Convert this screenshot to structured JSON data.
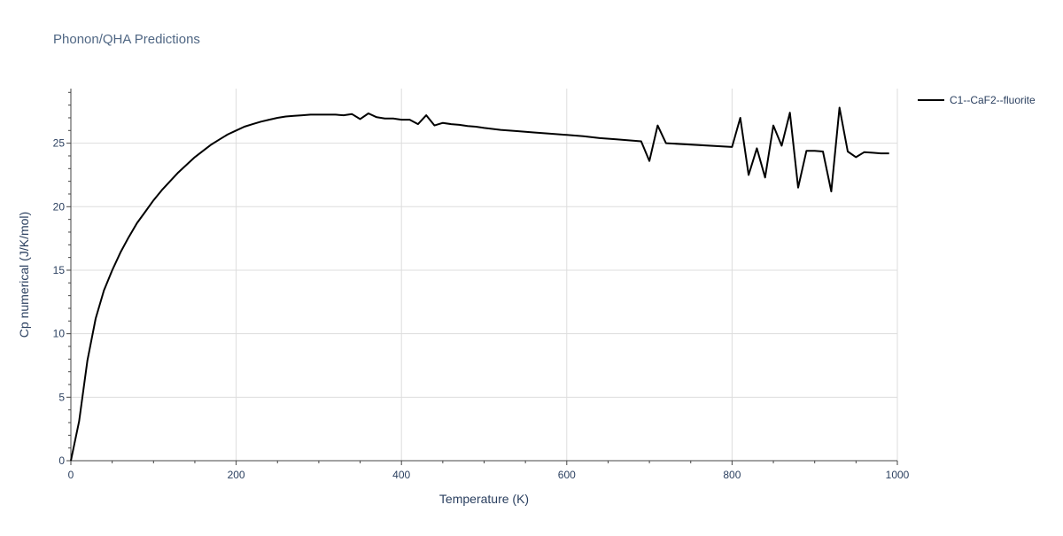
{
  "chart_data": {
    "type": "line",
    "title": "Phonon/QHA Predictions",
    "xlabel": "Temperature (K)",
    "ylabel": "Cp numerical (J/K/mol)",
    "xlim": [
      0,
      1000
    ],
    "ylim": [
      0,
      29.3
    ],
    "xticks": [
      0,
      200,
      400,
      600,
      800,
      1000
    ],
    "yticks": [
      0,
      5,
      10,
      15,
      20,
      25
    ],
    "grid": true,
    "legend_position": "top-right",
    "series": [
      {
        "name": "C1--CaF2--fluorite",
        "color": "#000000",
        "x": [
          0,
          10,
          20,
          30,
          40,
          50,
          60,
          70,
          80,
          90,
          100,
          110,
          120,
          130,
          140,
          150,
          160,
          170,
          180,
          190,
          200,
          210,
          220,
          230,
          240,
          250,
          260,
          270,
          280,
          290,
          300,
          310,
          320,
          330,
          340,
          350,
          360,
          370,
          380,
          390,
          400,
          410,
          420,
          430,
          440,
          450,
          460,
          470,
          480,
          490,
          500,
          520,
          540,
          560,
          580,
          600,
          620,
          640,
          660,
          680,
          690,
          700,
          710,
          720,
          800,
          810,
          820,
          830,
          840,
          850,
          860,
          870,
          880,
          890,
          900,
          910,
          920,
          930,
          940,
          950,
          960,
          970,
          980,
          990
        ],
        "y": [
          0,
          3.1,
          7.9,
          11.2,
          13.4,
          15.0,
          16.4,
          17.6,
          18.7,
          19.6,
          20.5,
          21.3,
          22.0,
          22.7,
          23.3,
          23.9,
          24.4,
          24.9,
          25.3,
          25.7,
          26.0,
          26.3,
          26.5,
          26.7,
          26.85,
          27.0,
          27.1,
          27.15,
          27.2,
          27.25,
          27.25,
          27.25,
          27.25,
          27.2,
          27.3,
          26.9,
          27.35,
          27.05,
          26.95,
          26.95,
          26.85,
          26.85,
          26.5,
          27.2,
          26.4,
          26.6,
          26.5,
          26.45,
          26.35,
          26.3,
          26.2,
          26.05,
          25.95,
          25.85,
          25.75,
          25.65,
          25.55,
          25.4,
          25.3,
          25.2,
          25.15,
          23.6,
          26.4,
          25.0,
          24.7,
          27.0,
          22.5,
          24.6,
          22.3,
          26.4,
          24.8,
          27.4,
          21.5,
          24.4,
          24.4,
          24.35,
          21.2,
          27.8,
          24.35,
          23.9,
          24.3,
          24.25,
          24.2,
          24.2
        ]
      }
    ]
  }
}
